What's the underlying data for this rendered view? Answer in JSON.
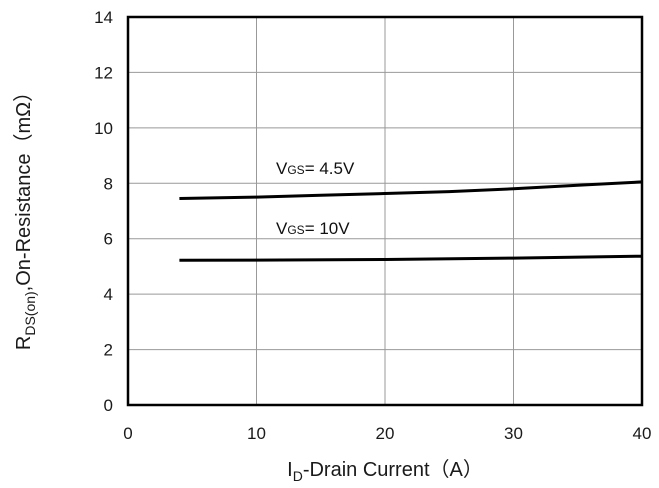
{
  "chart_data": {
    "type": "line",
    "xlabel": {
      "main": "I",
      "sub": "D",
      "rest": "-Drain Current（A）"
    },
    "ylabel": {
      "main": "R",
      "sub": "DS(on)",
      "rest": ",On-Resistance（mΩ）"
    },
    "xlim": [
      0,
      40
    ],
    "ylim": [
      0,
      14
    ],
    "xticks": [
      "0",
      "10",
      "20",
      "30",
      "40"
    ],
    "yticks": [
      "0",
      "2",
      "4",
      "6",
      "8",
      "10",
      "12",
      "14"
    ],
    "grid": true,
    "series": [
      {
        "name": "VGS= 4.5V",
        "label": {
          "main": "V",
          "sub": "GS",
          "rest": "= 4.5V"
        },
        "x": [
          4,
          10,
          15,
          20,
          25,
          30,
          35,
          40
        ],
        "y": [
          7.45,
          7.5,
          7.57,
          7.63,
          7.7,
          7.8,
          7.93,
          8.05
        ]
      },
      {
        "name": "VGS= 10V",
        "label": {
          "main": "V",
          "sub": "GS",
          "rest": "= 10V"
        },
        "x": [
          4,
          10,
          20,
          30,
          40
        ],
        "y": [
          5.22,
          5.23,
          5.25,
          5.3,
          5.37
        ]
      }
    ],
    "colors": {
      "line": "#000000",
      "grid": "#999999",
      "frame": "#000000"
    }
  }
}
